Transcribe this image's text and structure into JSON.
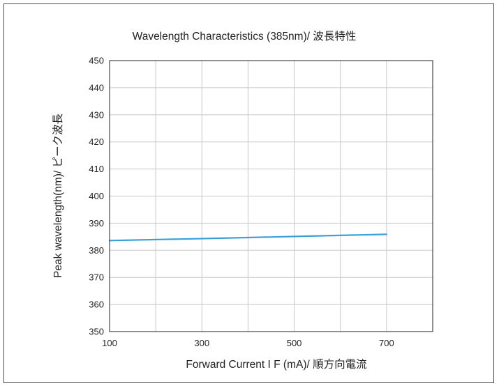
{
  "chart_data": {
    "type": "line",
    "title": "Wavelength Characteristics  (385nm)/ 波長特性",
    "xlabel": "Forward Current  I F  (mA)/ 順方向電流",
    "ylabel": "Peak wavelength(nm)/ ピーク波長",
    "xlim": [
      100,
      800
    ],
    "ylim": [
      350,
      450
    ],
    "x_ticks": [
      100,
      300,
      500,
      700
    ],
    "x_gridlines": [
      100,
      200,
      300,
      400,
      500,
      600,
      700,
      800
    ],
    "y_ticks": [
      350,
      360,
      370,
      380,
      390,
      400,
      410,
      420,
      430,
      440,
      450
    ],
    "grid": true,
    "series": [
      {
        "color": "#3a9fd8",
        "x": [
          100,
          300,
          500,
          700
        ],
        "y": [
          383.6,
          384.3,
          385.1,
          385.9
        ]
      }
    ]
  }
}
